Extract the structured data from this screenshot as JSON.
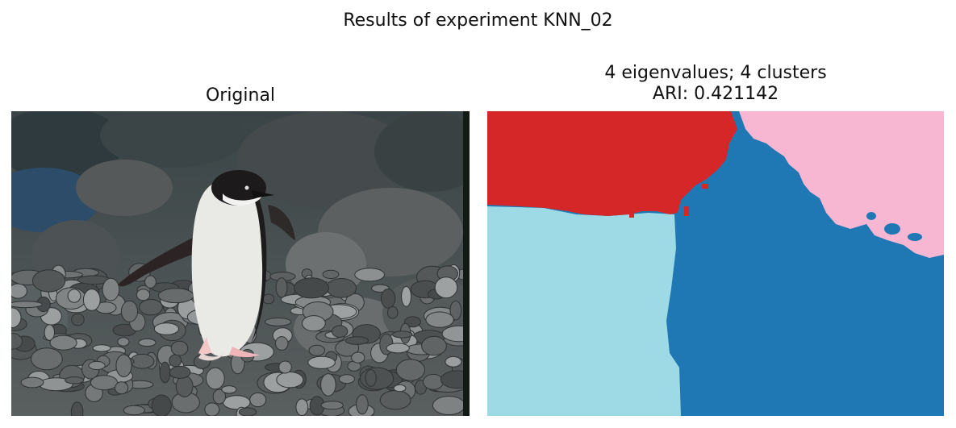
{
  "figure": {
    "suptitle": "Results of experiment KNN_02"
  },
  "panels": [
    {
      "title": "Original"
    },
    {
      "title_line1": "4 eigenvalues; 4 clusters",
      "title_line2": "ARI: 0.421142"
    }
  ],
  "colors": {
    "cluster_red": "#d62728",
    "cluster_pink": "#f7b6d2",
    "cluster_lightblue": "#9edae5",
    "cluster_blue": "#1f77b4"
  },
  "photo_subject": "penguin-on-rocks"
}
